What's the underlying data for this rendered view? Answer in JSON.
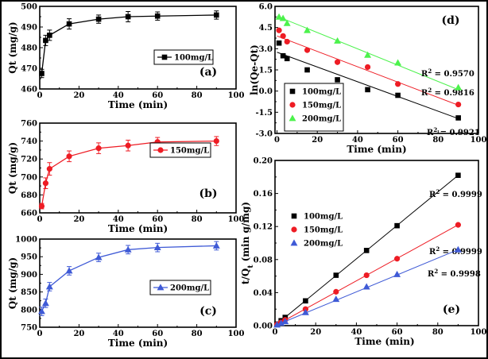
{
  "chart_data": [
    {
      "id": "a",
      "type": "line",
      "panel_label": "(a)",
      "xlabel": "Time (min)",
      "ylabel": "Qt (mg/g)",
      "xlim": [
        0,
        100
      ],
      "ylim": [
        460,
        500
      ],
      "xticks": [
        0,
        20,
        40,
        60,
        80,
        100
      ],
      "xtick_labels": [
        "0",
        "20",
        "40",
        "60",
        "80",
        "100"
      ],
      "yticks": [
        460,
        470,
        480,
        490,
        500
      ],
      "ytick_labels": [
        "460",
        "470",
        "480",
        "490",
        "500"
      ],
      "series": [
        {
          "name": "100mg/L",
          "color": "#000000",
          "marker": "square",
          "x": [
            1,
            3,
            5,
            15,
            30,
            45,
            60,
            90
          ],
          "y": [
            467.5,
            483.5,
            486,
            491.5,
            493.8,
            495,
            495.3,
            495.8
          ],
          "err": [
            2,
            2.5,
            2.5,
            2.5,
            2,
            2.5,
            2,
            2
          ]
        }
      ]
    },
    {
      "id": "b",
      "type": "line",
      "panel_label": "(b)",
      "xlabel": "Time (min)",
      "ylabel": "Qt (mg/g)",
      "xlim": [
        0,
        100
      ],
      "ylim": [
        660,
        760
      ],
      "xticks": [
        0,
        20,
        40,
        60,
        80,
        100
      ],
      "xtick_labels": [
        "0",
        "20",
        "40",
        "60",
        "80",
        "100"
      ],
      "yticks": [
        660,
        680,
        700,
        720,
        740,
        760
      ],
      "ytick_labels": [
        "660",
        "680",
        "700",
        "720",
        "740",
        "760"
      ],
      "series": [
        {
          "name": "150mg/L",
          "color": "#ee1c24",
          "marker": "circle",
          "x": [
            1,
            3,
            5,
            15,
            30,
            45,
            60,
            90
          ],
          "y": [
            667.5,
            693,
            709,
            723,
            732,
            735,
            739,
            740
          ],
          "err": [
            3,
            6,
            7,
            6,
            6,
            6,
            5,
            5
          ]
        }
      ]
    },
    {
      "id": "c",
      "type": "line",
      "panel_label": "(c)",
      "xlabel": "Time (min)",
      "ylabel": "Qt (mg/g)",
      "xlim": [
        0,
        100
      ],
      "ylim": [
        750,
        1000
      ],
      "xticks": [
        0,
        20,
        40,
        60,
        80,
        100
      ],
      "xtick_labels": [
        "0",
        "20",
        "40",
        "60",
        "80",
        "100"
      ],
      "yticks": [
        750,
        800,
        850,
        900,
        950,
        1000
      ],
      "ytick_labels": [
        "750",
        "800",
        "850",
        "900",
        "950",
        "1000"
      ],
      "series": [
        {
          "name": "200mg/L",
          "color": "#3f5ad6",
          "marker": "triangle",
          "x": [
            1,
            3,
            5,
            15,
            30,
            45,
            60,
            90
          ],
          "y": [
            795,
            818,
            865,
            910,
            948,
            970,
            976,
            981
          ],
          "err": [
            12,
            12,
            12,
            12,
            12,
            12,
            12,
            12
          ]
        }
      ]
    },
    {
      "id": "d",
      "type": "scatter",
      "panel_label": "(d)",
      "xlabel": "Time (min)",
      "ylabel": "ln(Qe-Qt)",
      "xlim": [
        -1,
        100
      ],
      "ylim": [
        -3,
        6
      ],
      "xticks": [
        0,
        20,
        40,
        60,
        80,
        100
      ],
      "xtick_labels": [
        "0",
        "20",
        "40",
        "60",
        "80",
        "100"
      ],
      "yticks": [
        -3,
        -1.5,
        0,
        1.5,
        3,
        4.5,
        6
      ],
      "ytick_labels": [
        "-3.0",
        "-1.5",
        "0.0",
        "1.5",
        "3.0",
        "4.5",
        "6.0"
      ],
      "series": [
        {
          "name": "100mg/L",
          "color": "#000000",
          "marker": "square",
          "x": [
            1,
            3,
            5,
            15,
            30,
            45,
            60,
            90
          ],
          "y": [
            3.4,
            2.5,
            2.3,
            1.5,
            0.8,
            0.1,
            -0.3,
            -1.9
          ],
          "fit": [
            [
              0,
              2.75
            ],
            [
              90,
              -1.95
            ]
          ],
          "r2_label": "R",
          "r2_sup": "2",
          "r2_value": " = 0.9921"
        },
        {
          "name": "150mg/L",
          "color": "#ee1c24",
          "marker": "circle",
          "x": [
            1,
            3,
            5,
            15,
            30,
            45,
            60,
            90
          ],
          "y": [
            4.3,
            3.9,
            3.5,
            2.9,
            2.05,
            1.7,
            0.5,
            -0.95
          ],
          "fit": [
            [
              0,
              3.9
            ],
            [
              90,
              -1.0
            ]
          ],
          "r2_label": "R",
          "r2_sup": "2",
          "r2_value": " = 0.9816"
        },
        {
          "name": "200mg/L",
          "color": "#4cf24c",
          "marker": "triangle",
          "x": [
            1,
            3,
            5,
            15,
            30,
            45,
            60,
            90
          ],
          "y": [
            5.25,
            5.15,
            4.8,
            4.3,
            3.55,
            2.55,
            2.0,
            0.25
          ],
          "fit": [
            [
              0,
              5.3
            ],
            [
              90,
              0.1
            ]
          ],
          "r2_label": "R",
          "r2_sup": "2",
          "r2_value": " = 0.9570"
        }
      ]
    },
    {
      "id": "e",
      "type": "scatter",
      "panel_label": "(e)",
      "xlabel": "Time (min)",
      "ylabel": "t/Q",
      "ylabel_sub": "t",
      "ylabel_tail": " (min g/mg)",
      "xlim": [
        0,
        100
      ],
      "ylim": [
        0,
        0.2
      ],
      "xticks": [
        0,
        20,
        40,
        60,
        80,
        100
      ],
      "xtick_labels": [
        "0",
        "20",
        "40",
        "60",
        "80",
        "100"
      ],
      "yticks": [
        0,
        0.04,
        0.08,
        0.12,
        0.16,
        0.2
      ],
      "ytick_labels": [
        "0.00",
        "0.04",
        "0.08",
        "0.12",
        "0.16",
        "0.20"
      ],
      "series": [
        {
          "name": "100mg/L",
          "color": "#000000",
          "marker": "square",
          "x": [
            1,
            3,
            5,
            15,
            30,
            45,
            60,
            90
          ],
          "y": [
            0.002,
            0.006,
            0.01,
            0.03,
            0.061,
            0.091,
            0.121,
            0.182
          ],
          "fit": [
            [
              0,
              0
            ],
            [
              90,
              0.182
            ]
          ],
          "r2_label": "R",
          "r2_sup": "2",
          "r2_value": " = 0.9999"
        },
        {
          "name": "150mg/L",
          "color": "#ee1c24",
          "marker": "circle",
          "x": [
            1,
            3,
            5,
            15,
            30,
            45,
            60,
            90
          ],
          "y": [
            0.0015,
            0.004,
            0.007,
            0.02,
            0.041,
            0.061,
            0.081,
            0.122
          ],
          "fit": [
            [
              0,
              0
            ],
            [
              90,
              0.122
            ]
          ],
          "r2_label": "R",
          "r2_sup": "2",
          "r2_value": " = 0.9999"
        },
        {
          "name": "200mg/L",
          "color": "#3f5ad6",
          "marker": "triangle",
          "x": [
            1,
            3,
            5,
            15,
            30,
            45,
            60,
            90
          ],
          "y": [
            0.001,
            0.003,
            0.005,
            0.016,
            0.032,
            0.047,
            0.062,
            0.092
          ],
          "fit": [
            [
              0,
              0
            ],
            [
              90,
              0.092
            ]
          ],
          "r2_label": "R",
          "r2_sup": "2",
          "r2_value": " = 0.9998"
        }
      ]
    }
  ]
}
